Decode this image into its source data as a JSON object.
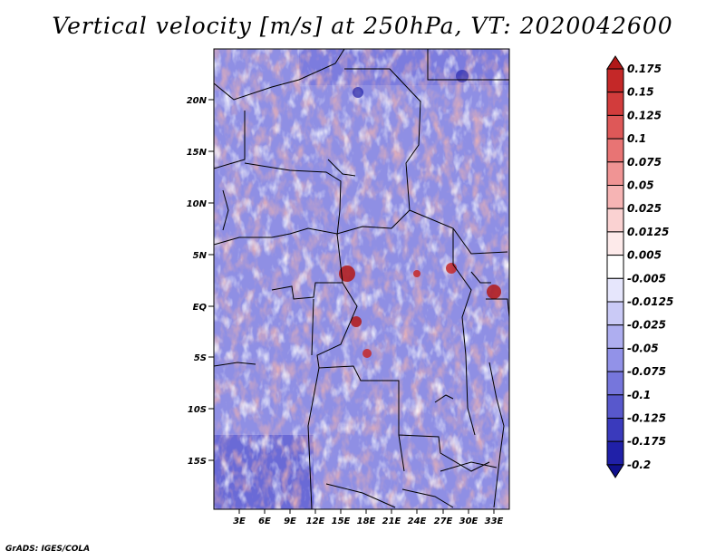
{
  "title": "Vertical velocity [m/s] at 250hPa, VT: 2020042600",
  "credit": "GrADS: IGES/COLA",
  "map": {
    "lat_labels": [
      "20N",
      "15N",
      "10N",
      "5N",
      "EQ",
      "5S",
      "10S",
      "15S"
    ],
    "lon_labels": [
      "3E",
      "6E",
      "9E",
      "12E",
      "15E",
      "18E",
      "21E",
      "24E",
      "27E",
      "30E",
      "33E"
    ]
  },
  "colorbar": {
    "levels": [
      "0.175",
      "0.15",
      "0.125",
      "0.1",
      "0.075",
      "0.05",
      "0.025",
      "0.0125",
      "0.005",
      "-0.005",
      "-0.0125",
      "-0.025",
      "-0.05",
      "-0.075",
      "-0.1",
      "-0.125",
      "-0.175",
      "-0.2"
    ],
    "colors": [
      "#b01818",
      "#c42828",
      "#d23c3c",
      "#de5858",
      "#e87474",
      "#f09494",
      "#f6b4b4",
      "#fad2d2",
      "#fdeaea",
      "#ffffff",
      "#e6e6fc",
      "#cacaf6",
      "#aeaef0",
      "#9292e8",
      "#7676dc",
      "#5858cc",
      "#3a3abc",
      "#2020a8",
      "#10108c"
    ]
  }
}
